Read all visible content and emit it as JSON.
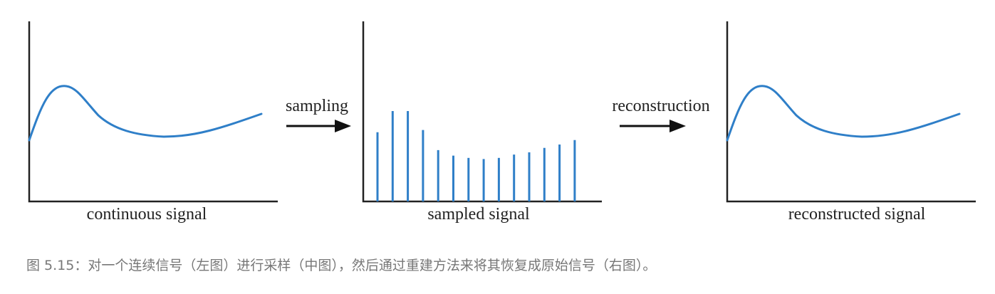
{
  "panels": {
    "continuous": {
      "label": "continuous signal"
    },
    "sampled": {
      "label": "sampled signal"
    },
    "reconstructed": {
      "label": "reconstructed signal"
    }
  },
  "arrows": {
    "sampling": {
      "label": "sampling"
    },
    "reconstruction": {
      "label": "reconstruction"
    }
  },
  "signal": {
    "color": "#2f7fc8",
    "samples": [
      0.62,
      0.81,
      0.81,
      0.64,
      0.46,
      0.41,
      0.39,
      0.38,
      0.39,
      0.42,
      0.44,
      0.48,
      0.51,
      0.55
    ]
  },
  "caption": "图 5.15：对一个连续信号（左图）进行采样（中图），然后通过重建方法来将其恢复成原始信号（右图）。"
}
